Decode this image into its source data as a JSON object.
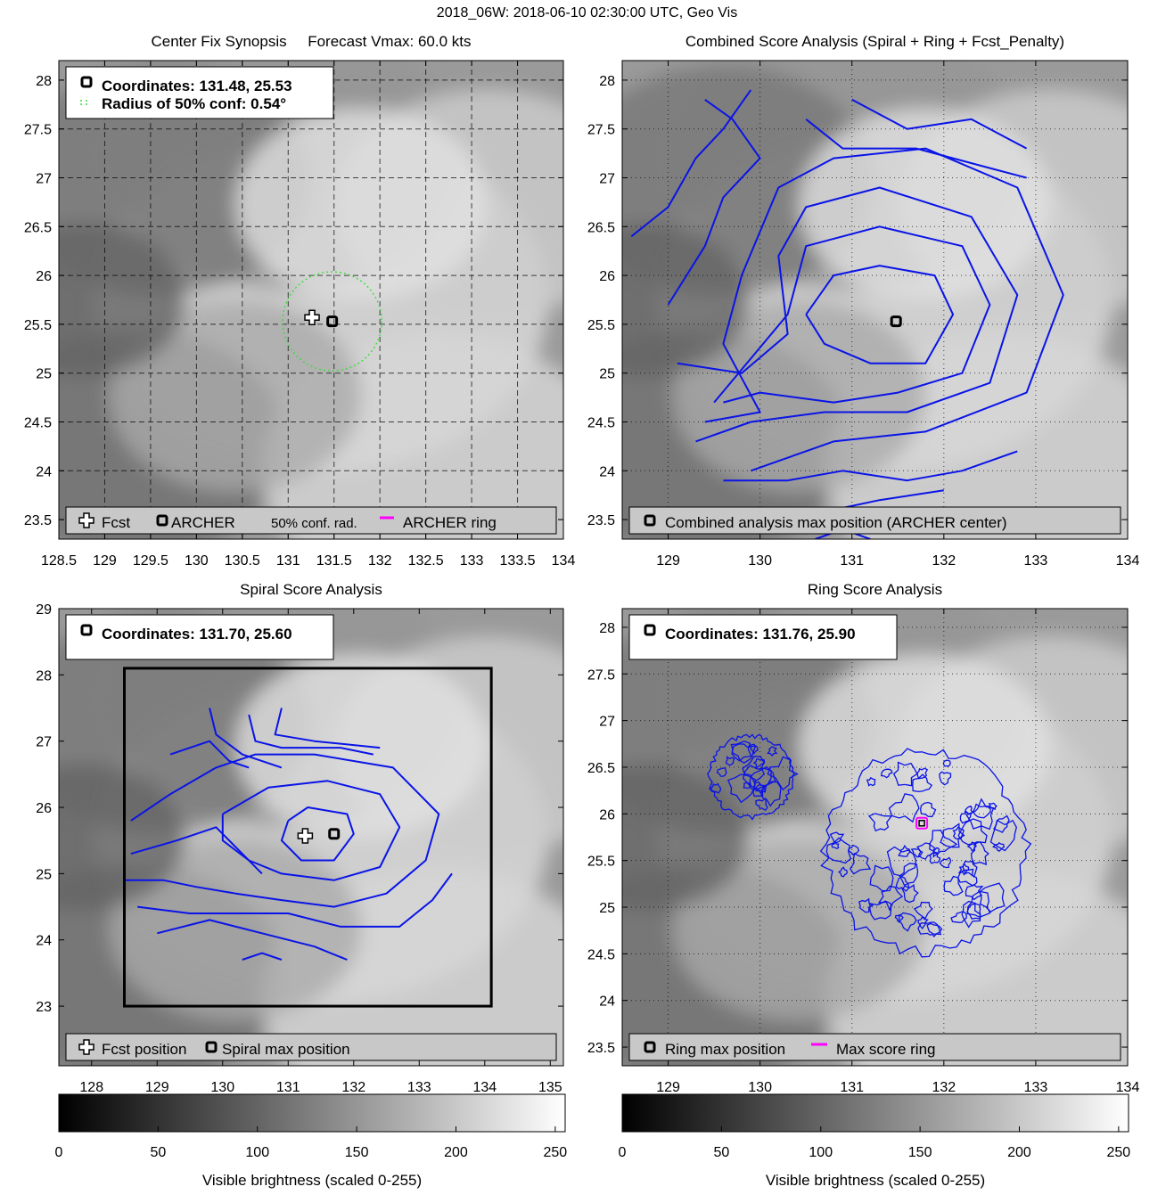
{
  "figure": {
    "title": "2018_06W: 2018-06-10 02:30:00 UTC, Geo Vis"
  },
  "colorbar_label": "Visible brightness (scaled 0-255)",
  "chart_data": [
    {
      "id": "p1",
      "type": "scatter",
      "title": "Center Fix Synopsis     Forecast Vmax: 60.0 kts",
      "xlim": [
        128.5,
        134
      ],
      "ylim": [
        23.3,
        28.2
      ],
      "xticks": [
        128.5,
        129,
        129.5,
        130,
        130.5,
        131,
        131.5,
        132,
        132.5,
        133,
        133.5,
        134
      ],
      "yticks": [
        23.5,
        24,
        24.5,
        25,
        25.5,
        26,
        26.5,
        27,
        27.5,
        28
      ],
      "grid": "dashed",
      "legend_top": [
        "Coordinates: 131.48, 25.53",
        "Radius of 50% conf: 0.54°"
      ],
      "legend_bottom": [
        "Fcst",
        "ARCHER",
        "50% conf. rad.",
        "ARCHER ring"
      ],
      "archer_center": [
        131.48,
        25.53
      ],
      "fcst_position": [
        131.26,
        25.57
      ],
      "conf_radius_deg": 0.54
    },
    {
      "id": "p2",
      "type": "line",
      "title": "Combined Score Analysis (Spiral + Ring + Fcst_Penalty)",
      "xlim": [
        128.5,
        134
      ],
      "ylim": [
        23.3,
        28.2
      ],
      "xticks": [
        129,
        130,
        131,
        132,
        133,
        134
      ],
      "yticks": [
        23.5,
        24,
        24.5,
        25,
        25.5,
        26,
        26.5,
        27,
        27.5,
        28
      ],
      "grid": "dotted",
      "legend_bottom": [
        "Combined analysis max position (ARCHER center)"
      ],
      "archer_center": [
        131.48,
        25.53
      ],
      "contours": [
        [
          [
            130.5,
            25.6
          ],
          [
            130.8,
            26.0
          ],
          [
            131.3,
            26.1
          ],
          [
            131.9,
            26.0
          ],
          [
            132.1,
            25.6
          ],
          [
            131.8,
            25.1
          ],
          [
            131.2,
            25.1
          ],
          [
            130.7,
            25.3
          ],
          [
            130.5,
            25.6
          ]
        ],
        [
          [
            129.5,
            24.7
          ],
          [
            130.3,
            25.6
          ],
          [
            130.5,
            26.3
          ],
          [
            131.3,
            26.5
          ],
          [
            132.2,
            26.3
          ],
          [
            132.5,
            25.7
          ],
          [
            132.2,
            25.0
          ],
          [
            131.5,
            24.8
          ],
          [
            130.8,
            24.7
          ],
          [
            130.0,
            24.8
          ],
          [
            129.6,
            24.7
          ]
        ],
        [
          [
            129.1,
            25.1
          ],
          [
            129.8,
            25.0
          ],
          [
            130.3,
            25.4
          ],
          [
            130.2,
            26.2
          ],
          [
            130.5,
            26.7
          ],
          [
            131.3,
            26.9
          ],
          [
            132.3,
            26.6
          ],
          [
            132.8,
            25.8
          ],
          [
            132.5,
            24.9
          ],
          [
            131.6,
            24.6
          ],
          [
            130.7,
            24.6
          ],
          [
            129.9,
            24.5
          ],
          [
            129.3,
            24.3
          ]
        ],
        [
          [
            129.4,
            24.5
          ],
          [
            130.0,
            24.6
          ],
          [
            129.6,
            25.3
          ],
          [
            129.8,
            26.0
          ],
          [
            130.2,
            26.9
          ],
          [
            130.8,
            27.2
          ],
          [
            131.8,
            27.3
          ],
          [
            132.8,
            26.9
          ],
          [
            133.3,
            25.8
          ],
          [
            132.9,
            24.8
          ],
          [
            131.8,
            24.4
          ],
          [
            130.8,
            24.3
          ],
          [
            130.2,
            24.1
          ],
          [
            129.9,
            24.0
          ]
        ],
        [
          [
            129.0,
            25.7
          ],
          [
            129.4,
            26.3
          ],
          [
            129.6,
            26.8
          ],
          [
            130.0,
            27.2
          ],
          [
            129.7,
            27.6
          ],
          [
            129.4,
            27.8
          ]
        ],
        [
          [
            128.6,
            26.4
          ],
          [
            129.0,
            26.7
          ],
          [
            129.3,
            27.2
          ],
          [
            129.6,
            27.5
          ],
          [
            129.9,
            27.9
          ]
        ],
        [
          [
            130.5,
            27.6
          ],
          [
            130.9,
            27.3
          ],
          [
            131.7,
            27.3
          ],
          [
            132.5,
            27.1
          ],
          [
            132.9,
            27.0
          ]
        ],
        [
          [
            131.0,
            27.8
          ],
          [
            131.6,
            27.5
          ],
          [
            132.3,
            27.6
          ],
          [
            132.9,
            27.3
          ]
        ],
        [
          [
            129.6,
            23.9
          ],
          [
            130.3,
            23.9
          ],
          [
            130.9,
            24.0
          ],
          [
            131.6,
            23.9
          ],
          [
            132.2,
            24.0
          ],
          [
            132.8,
            24.2
          ]
        ],
        [
          [
            130.2,
            23.5
          ],
          [
            130.8,
            23.6
          ],
          [
            131.3,
            23.7
          ],
          [
            132.0,
            23.8
          ]
        ],
        [
          [
            130.6,
            23.3
          ],
          [
            130.9,
            23.4
          ],
          [
            131.2,
            23.3
          ]
        ]
      ]
    },
    {
      "id": "p3",
      "type": "line",
      "title": "Spiral Score Analysis",
      "xlim": [
        127.5,
        135.2
      ],
      "ylim": [
        22.1,
        29.0
      ],
      "xticks": [
        128,
        129,
        130,
        131,
        132,
        133,
        134,
        135
      ],
      "yticks": [
        23,
        24,
        25,
        26,
        27,
        28,
        29
      ],
      "grid": "none",
      "legend_top": [
        "Coordinates: 131.70, 25.60"
      ],
      "legend_bottom": [
        "Fcst position",
        "Spiral max position"
      ],
      "spiral_max": [
        131.7,
        25.6
      ],
      "fcst_position": [
        131.26,
        25.57
      ],
      "search_box": [
        128.5,
        23.0,
        134.1,
        28.1
      ],
      "contours": [
        [
          [
            131.0,
            25.8
          ],
          [
            131.3,
            26.0
          ],
          [
            131.9,
            25.9
          ],
          [
            132.0,
            25.6
          ],
          [
            131.7,
            25.2
          ],
          [
            131.2,
            25.2
          ],
          [
            130.9,
            25.5
          ],
          [
            131.0,
            25.8
          ]
        ],
        [
          [
            130.0,
            25.9
          ],
          [
            130.7,
            26.3
          ],
          [
            131.6,
            26.4
          ],
          [
            132.4,
            26.2
          ],
          [
            132.7,
            25.7
          ],
          [
            132.4,
            25.1
          ],
          [
            131.7,
            24.9
          ],
          [
            130.9,
            25.0
          ],
          [
            130.4,
            25.2
          ],
          [
            130.0,
            25.5
          ],
          [
            130.0,
            25.9
          ]
        ],
        [
          [
            128.6,
            25.8
          ],
          [
            129.2,
            26.2
          ],
          [
            129.9,
            26.6
          ],
          [
            130.5,
            26.8
          ],
          [
            131.4,
            26.8
          ],
          [
            132.6,
            26.6
          ],
          [
            133.3,
            25.9
          ],
          [
            133.1,
            25.2
          ],
          [
            132.5,
            24.7
          ],
          [
            131.7,
            24.5
          ],
          [
            130.9,
            24.6
          ],
          [
            130.2,
            24.7
          ],
          [
            129.6,
            24.8
          ],
          [
            129.1,
            24.9
          ],
          [
            128.5,
            24.9
          ]
        ],
        [
          [
            128.6,
            25.3
          ],
          [
            129.3,
            25.5
          ],
          [
            129.9,
            25.7
          ],
          [
            130.3,
            25.3
          ],
          [
            130.6,
            25.0
          ]
        ],
        [
          [
            129.2,
            26.8
          ],
          [
            129.8,
            27.0
          ],
          [
            130.1,
            26.7
          ],
          [
            130.4,
            26.6
          ]
        ],
        [
          [
            129.8,
            27.5
          ],
          [
            129.9,
            27.1
          ],
          [
            130.3,
            26.8
          ],
          [
            130.9,
            26.6
          ]
        ],
        [
          [
            130.4,
            27.4
          ],
          [
            130.5,
            27.0
          ],
          [
            130.9,
            26.9
          ],
          [
            131.8,
            26.9
          ],
          [
            132.3,
            26.8
          ]
        ],
        [
          [
            130.9,
            27.5
          ],
          [
            130.8,
            27.1
          ],
          [
            131.4,
            27.0
          ],
          [
            132.4,
            26.9
          ]
        ],
        [
          [
            128.7,
            24.5
          ],
          [
            129.5,
            24.4
          ],
          [
            130.3,
            24.4
          ],
          [
            131.0,
            24.4
          ],
          [
            131.8,
            24.2
          ],
          [
            132.7,
            24.2
          ],
          [
            133.2,
            24.6
          ],
          [
            133.5,
            25.0
          ]
        ],
        [
          [
            129.0,
            24.1
          ],
          [
            129.8,
            24.3
          ],
          [
            130.6,
            24.1
          ],
          [
            131.4,
            23.9
          ],
          [
            131.9,
            23.7
          ]
        ],
        [
          [
            130.3,
            23.7
          ],
          [
            130.6,
            23.8
          ],
          [
            130.9,
            23.7
          ]
        ]
      ]
    },
    {
      "id": "p4",
      "type": "line",
      "title": "Ring Score Analysis",
      "xlim": [
        128.5,
        134
      ],
      "ylim": [
        23.3,
        28.2
      ],
      "xticks": [
        129,
        130,
        131,
        132,
        133,
        134
      ],
      "yticks": [
        23.5,
        24,
        24.5,
        25,
        25.5,
        26,
        26.5,
        27,
        27.5,
        28
      ],
      "grid": "dotted",
      "legend_top": [
        "Coordinates: 131.76, 25.90"
      ],
      "legend_bottom": [
        "Ring max position",
        "Max score ring"
      ],
      "ring_max": [
        131.76,
        25.9
      ],
      "ring_regions": [
        {
          "center": [
            131.8,
            25.6
          ],
          "radius_deg": 1.1
        },
        {
          "center": [
            129.9,
            26.4
          ],
          "radius_deg": 0.45
        }
      ]
    }
  ],
  "colorbars": [
    {
      "id": "cb-left",
      "ticks": [
        0,
        50,
        100,
        150,
        200,
        250
      ],
      "range": [
        0,
        255
      ]
    },
    {
      "id": "cb-right",
      "ticks": [
        0,
        50,
        100,
        150,
        200,
        250
      ],
      "range": [
        0,
        255
      ]
    }
  ],
  "colors": {
    "contour": "#0a14e6",
    "conf_circle": "#33dd33",
    "ring": "#ff00ff",
    "legend_bar": "#c8c8c8"
  }
}
